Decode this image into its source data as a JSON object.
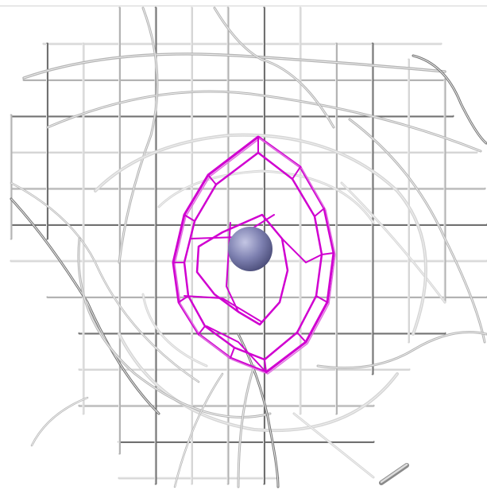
{
  "scene": {
    "background": "#ffffff",
    "colors": {
      "mesh_light": "#d6d6d6",
      "mesh_mid": "#b3b3b3",
      "mesh_dark": "#707070",
      "contour": "#d000d0",
      "contour_light": "#e070e0",
      "atom": "#7d80b0",
      "atom_highlight": "#c4c6e4"
    },
    "objects": [
      "grey-density-mesh",
      "magenta-density-contour",
      "central-atom-sphere",
      "bond-stick"
    ]
  }
}
